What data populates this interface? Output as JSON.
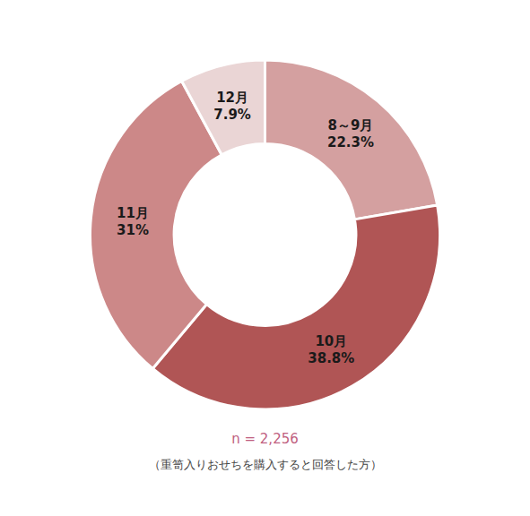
{
  "chart_data": {
    "type": "donut",
    "categories": [
      "8～9月",
      "10月",
      "11月",
      "12月"
    ],
    "values": [
      22.3,
      38.8,
      31.0,
      7.9
    ],
    "value_labels": [
      "22.3%",
      "38.8%",
      "31%",
      "7.9%"
    ],
    "colors": [
      "#d4a0a0",
      "#b05555",
      "#cc8888",
      "#ead5d5"
    ],
    "data_labels": true,
    "annotations": [
      {
        "text": "n = 2,256",
        "color": "#c06080"
      },
      {
        "text": "（重笥入りおせちを購入すると回答した方）"
      }
    ]
  }
}
